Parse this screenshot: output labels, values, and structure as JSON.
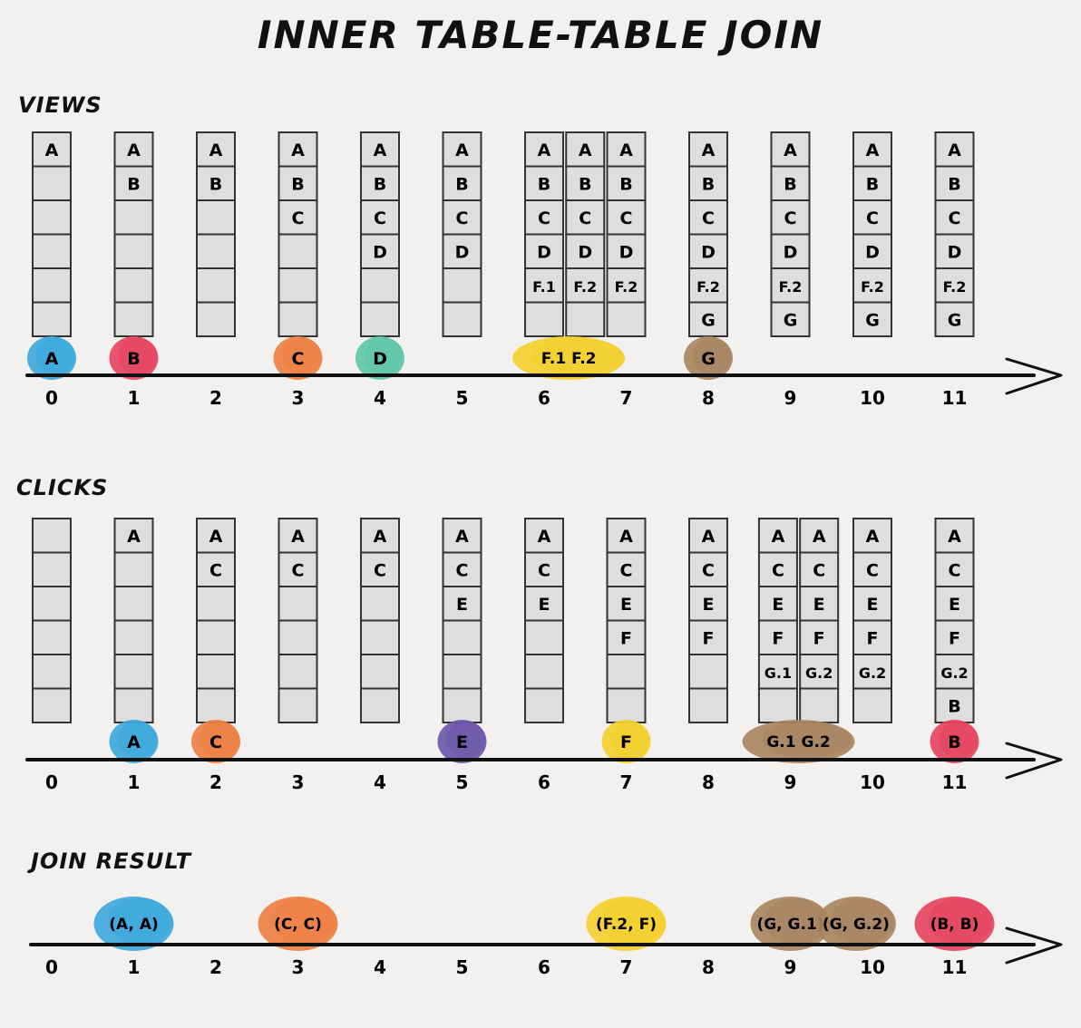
{
  "title": "INNER TABLE-TABLE JOIN",
  "colors": {
    "A": "#3ba7dc",
    "B": "#e6415c",
    "C": "#ec7d3f",
    "D": "#5cc6a7",
    "E": "#6b54a8",
    "F": "#f4cf2a",
    "G": "#a8845e",
    "cell": "#dedede",
    "background": "#f2f1ef"
  },
  "views": {
    "label": "VIEWS",
    "ticks": [
      "0",
      "1",
      "2",
      "3",
      "4",
      "5",
      "6",
      "7",
      "8",
      "9",
      "10",
      "11"
    ],
    "tables": [
      {
        "t": 0,
        "cells": [
          "A",
          "",
          "",
          "",
          "",
          ""
        ]
      },
      {
        "t": 1,
        "cells": [
          "A",
          "B",
          "",
          "",
          "",
          ""
        ]
      },
      {
        "t": 2,
        "cells": [
          "A",
          "B",
          "",
          "",
          "",
          ""
        ]
      },
      {
        "t": 3,
        "cells": [
          "A",
          "B",
          "C",
          "",
          "",
          ""
        ]
      },
      {
        "t": 4,
        "cells": [
          "A",
          "B",
          "C",
          "D",
          "",
          ""
        ]
      },
      {
        "t": 5,
        "cells": [
          "A",
          "B",
          "C",
          "D",
          "",
          ""
        ]
      },
      {
        "t": 6.0,
        "cells": [
          "A",
          "B",
          "C",
          "D",
          "F.1",
          ""
        ]
      },
      {
        "t": 6.5,
        "cells": [
          "A",
          "B",
          "C",
          "D",
          "F.2",
          ""
        ]
      },
      {
        "t": 7,
        "cells": [
          "A",
          "B",
          "C",
          "D",
          "F.2",
          ""
        ]
      },
      {
        "t": 8,
        "cells": [
          "A",
          "B",
          "C",
          "D",
          "F.2",
          "G"
        ]
      },
      {
        "t": 9,
        "cells": [
          "A",
          "B",
          "C",
          "D",
          "F.2",
          "G"
        ]
      },
      {
        "t": 10,
        "cells": [
          "A",
          "B",
          "C",
          "D",
          "F.2",
          "G"
        ]
      },
      {
        "t": 11,
        "cells": [
          "A",
          "B",
          "C",
          "D",
          "F.2",
          "G"
        ]
      }
    ],
    "events": [
      {
        "t": 0,
        "label": "A",
        "color": "A"
      },
      {
        "t": 1,
        "label": "B",
        "color": "B"
      },
      {
        "t": 3,
        "label": "C",
        "color": "C"
      },
      {
        "t": 4,
        "label": "D",
        "color": "D"
      },
      {
        "t": 6.3,
        "label": "F.1  F.2",
        "color": "F",
        "wide": true
      },
      {
        "t": 8,
        "label": "G",
        "color": "G"
      }
    ]
  },
  "clicks": {
    "label": "CLICKS",
    "ticks": [
      "0",
      "1",
      "2",
      "3",
      "4",
      "5",
      "6",
      "7",
      "8",
      "9",
      "10",
      "11"
    ],
    "tables": [
      {
        "t": 0,
        "cells": [
          "",
          "",
          "",
          "",
          "",
          ""
        ]
      },
      {
        "t": 1,
        "cells": [
          "A",
          "",
          "",
          "",
          "",
          ""
        ]
      },
      {
        "t": 2,
        "cells": [
          "A",
          "C",
          "",
          "",
          "",
          ""
        ]
      },
      {
        "t": 3,
        "cells": [
          "A",
          "C",
          "",
          "",
          "",
          ""
        ]
      },
      {
        "t": 4,
        "cells": [
          "A",
          "C",
          "",
          "",
          "",
          ""
        ]
      },
      {
        "t": 5,
        "cells": [
          "A",
          "C",
          "E",
          "",
          "",
          ""
        ]
      },
      {
        "t": 6,
        "cells": [
          "A",
          "C",
          "E",
          "",
          "",
          ""
        ]
      },
      {
        "t": 7,
        "cells": [
          "A",
          "C",
          "E",
          "F",
          "",
          ""
        ]
      },
      {
        "t": 8,
        "cells": [
          "A",
          "C",
          "E",
          "F",
          "",
          ""
        ]
      },
      {
        "t": 8.85,
        "cells": [
          "A",
          "C",
          "E",
          "F",
          "G.1",
          ""
        ]
      },
      {
        "t": 9.35,
        "cells": [
          "A",
          "C",
          "E",
          "F",
          "G.2",
          ""
        ]
      },
      {
        "t": 10,
        "cells": [
          "A",
          "C",
          "E",
          "F",
          "G.2",
          ""
        ]
      },
      {
        "t": 11,
        "cells": [
          "A",
          "C",
          "E",
          "F",
          "G.2",
          "B"
        ]
      }
    ],
    "events": [
      {
        "t": 1,
        "label": "A",
        "color": "A"
      },
      {
        "t": 2,
        "label": "C",
        "color": "C"
      },
      {
        "t": 5,
        "label": "E",
        "color": "E"
      },
      {
        "t": 7,
        "label": "F",
        "color": "F"
      },
      {
        "t": 9.1,
        "label": "G.1  G.2",
        "color": "G",
        "wide": true
      },
      {
        "t": 11,
        "label": "B",
        "color": "B"
      }
    ]
  },
  "join": {
    "label": "JOIN RESULT",
    "ticks": [
      "0",
      "1",
      "2",
      "3",
      "4",
      "5",
      "6",
      "7",
      "8",
      "9",
      "10",
      "11"
    ],
    "events": [
      {
        "t": 1,
        "label": "(A, A)",
        "color": "A"
      },
      {
        "t": 3,
        "label": "(C, C)",
        "color": "C"
      },
      {
        "t": 7,
        "label": "(F.2, F)",
        "color": "F"
      },
      {
        "t": 9,
        "label": "(G, G.1)",
        "color": "G"
      },
      {
        "t": 9.8,
        "label": "(G, G.2)",
        "color": "G"
      },
      {
        "t": 11,
        "label": "(B, B)",
        "color": "B"
      }
    ]
  }
}
